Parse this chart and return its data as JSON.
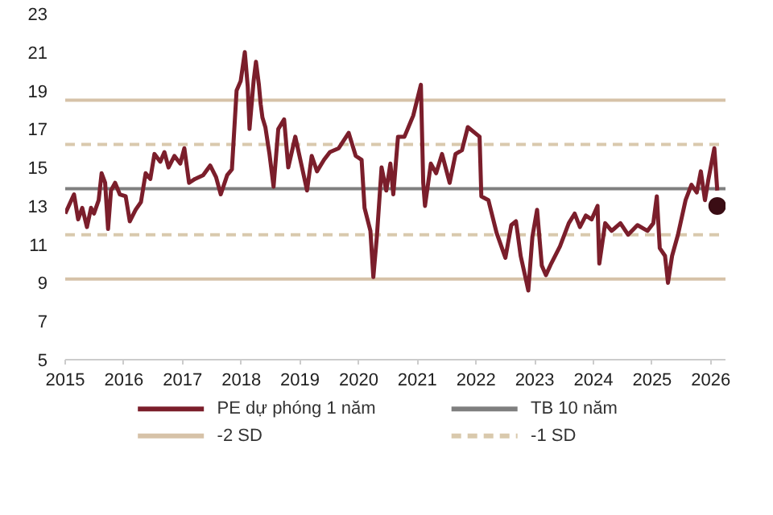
{
  "chart_data": {
    "type": "line",
    "xlim": [
      2015,
      2026.25
    ],
    "xticks": [
      2015,
      2016,
      2017,
      2018,
      2019,
      2020,
      2021,
      2022,
      2023,
      2024,
      2025,
      2026
    ],
    "ylim": [
      5,
      23
    ],
    "yticks": [
      5,
      7,
      9,
      11,
      13,
      15,
      17,
      19,
      21,
      23
    ],
    "grid": false,
    "legend": "bottom",
    "marker": "none",
    "line_style": "solid",
    "series": [
      {
        "name": "PE dự phóng 1 năm",
        "color": "#7b1e2b",
        "x": [
          2015.0,
          2015.15,
          2015.22,
          2015.29,
          2015.37,
          2015.44,
          2015.49,
          2015.57,
          2015.62,
          2015.68,
          2015.73,
          2015.78,
          2015.85,
          2015.93,
          2016.03,
          2016.1,
          2016.2,
          2016.29,
          2016.37,
          2016.45,
          2016.52,
          2016.62,
          2016.69,
          2016.76,
          2016.86,
          2016.96,
          2017.03,
          2017.11,
          2017.21,
          2017.35,
          2017.47,
          2017.57,
          2017.65,
          2017.76,
          2017.84,
          2017.92,
          2017.99,
          2018.06,
          2018.11,
          2018.14,
          2018.21,
          2018.25,
          2018.3,
          2018.33,
          2018.36,
          2018.41,
          2018.48,
          2018.55,
          2018.63,
          2018.73,
          2018.8,
          2018.92,
          2019.02,
          2019.12,
          2019.2,
          2019.29,
          2019.41,
          2019.51,
          2019.66,
          2019.83,
          2019.95,
          2020.05,
          2020.1,
          2020.2,
          2020.25,
          2020.31,
          2020.39,
          2020.47,
          2020.54,
          2020.59,
          2020.67,
          2020.78,
          2020.93,
          2021.06,
          2021.1,
          2021.13,
          2021.23,
          2021.32,
          2021.42,
          2021.55,
          2021.65,
          2021.76,
          2021.86,
          2021.98,
          2022.06,
          2022.09,
          2022.21,
          2022.35,
          2022.5,
          2022.6,
          2022.68,
          2022.76,
          2022.84,
          2022.89,
          2022.96,
          2023.04,
          2023.12,
          2023.19,
          2023.28,
          2023.43,
          2023.58,
          2023.68,
          2023.77,
          2023.87,
          2023.97,
          2024.07,
          2024.1,
          2024.2,
          2024.31,
          2024.46,
          2024.59,
          2024.75,
          2024.92,
          2025.02,
          2025.08,
          2025.13,
          2025.22,
          2025.27,
          2025.34,
          2025.44,
          2025.57,
          2025.67,
          2025.76,
          2025.83,
          2025.9,
          2025.96,
          2026.06,
          2026.11
        ],
        "values": [
          12.6,
          13.6,
          12.3,
          12.9,
          11.9,
          12.9,
          12.6,
          13.3,
          14.7,
          14.2,
          11.8,
          13.8,
          14.2,
          13.6,
          13.5,
          12.2,
          12.8,
          13.2,
          14.7,
          14.4,
          15.7,
          15.3,
          15.8,
          15.0,
          15.6,
          15.2,
          16.0,
          14.2,
          14.4,
          14.6,
          15.1,
          14.5,
          13.6,
          14.6,
          14.9,
          19.0,
          19.5,
          21.0,
          19.2,
          17.0,
          19.5,
          20.5,
          19.3,
          18.3,
          17.6,
          17.1,
          15.7,
          14.0,
          17.0,
          17.5,
          15.0,
          16.6,
          15.2,
          13.8,
          15.6,
          14.8,
          15.4,
          15.8,
          16.0,
          16.8,
          15.6,
          15.4,
          12.9,
          11.7,
          9.3,
          11.4,
          15.0,
          13.8,
          15.2,
          13.6,
          16.6,
          16.6,
          17.7,
          19.3,
          14.2,
          13.0,
          15.2,
          14.7,
          15.7,
          14.2,
          15.7,
          15.9,
          17.1,
          16.8,
          16.6,
          13.5,
          13.3,
          11.6,
          10.3,
          12.0,
          12.2,
          10.4,
          9.3,
          8.6,
          11.4,
          12.8,
          9.9,
          9.4,
          10.0,
          10.9,
          12.1,
          12.6,
          11.9,
          12.5,
          12.3,
          13.0,
          10.0,
          12.1,
          11.7,
          12.1,
          11.5,
          12.0,
          11.7,
          12.1,
          13.5,
          10.8,
          10.4,
          9.0,
          10.4,
          11.5,
          13.3,
          14.1,
          13.7,
          14.8,
          13.3,
          14.4,
          16.0,
          13.8
        ]
      },
      {
        "color": "#3a0d14",
        "type": "scatter",
        "marker": "circle",
        "x": [
          2026.11
        ],
        "values": [
          13.0
        ]
      }
    ],
    "ref_lines": [
      {
        "axis": "y",
        "value": 13.9,
        "label": "TB 10 năm",
        "color": "#7f7f7f",
        "line_style": "solid"
      },
      {
        "axis": "y",
        "value": 9.2,
        "label": "-2 SD",
        "color": "#d6c2a8",
        "line_style": "solid"
      },
      {
        "axis": "y",
        "value": 11.5,
        "label": "-1 SD",
        "color": "#d9c9ad",
        "line_style": "dashed"
      },
      {
        "axis": "y",
        "value": 18.5,
        "color": "#d6c2a8",
        "line_style": "solid"
      },
      {
        "axis": "y",
        "value": 16.2,
        "color": "#d9c9ad",
        "line_style": "dashed"
      }
    ]
  }
}
